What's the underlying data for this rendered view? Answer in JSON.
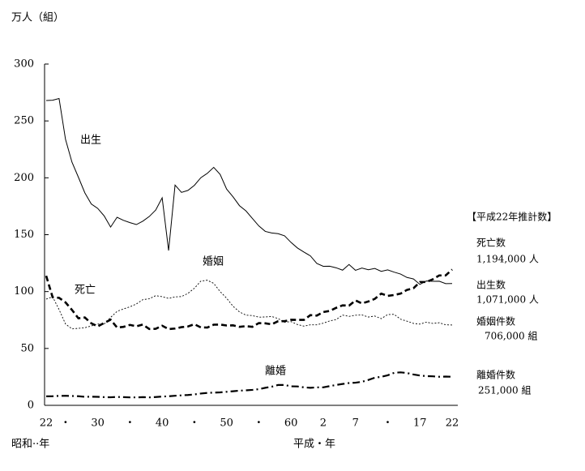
{
  "chart_data": {
    "type": "line",
    "y_label": "万人（組）",
    "x_label_left": "昭和··年",
    "x_label_right": "平成・年",
    "categories": [
      "22",
      null,
      null,
      "・",
      null,
      null,
      null,
      null,
      "30",
      null,
      null,
      null,
      null,
      "・",
      null,
      null,
      null,
      null,
      "40",
      null,
      null,
      null,
      null,
      "・",
      null,
      null,
      null,
      null,
      "50",
      null,
      null,
      null,
      null,
      "・",
      null,
      null,
      null,
      null,
      "60",
      null,
      null,
      null,
      null,
      "2",
      null,
      null,
      null,
      null,
      "7",
      null,
      null,
      null,
      null,
      "・",
      null,
      null,
      null,
      null,
      "17",
      null,
      null,
      null,
      null,
      "22"
    ],
    "ylim": [
      0,
      300
    ],
    "yticks": [
      0,
      50,
      100,
      150,
      200,
      250,
      300
    ],
    "series": [
      {
        "name": "出生",
        "color": "#000000",
        "style": "solid",
        "values": [
          267.9,
          268.2,
          269.7,
          233.8,
          213.8,
          200.5,
          186.8,
          177.0,
          173.1,
          166.5,
          156.7,
          165.3,
          162.6,
          160.6,
          158.9,
          161.9,
          166.0,
          171.7,
          182.4,
          136.1,
          193.6,
          187.2,
          188.9,
          193.4,
          200.1,
          203.9,
          209.2,
          203.0,
          190.1,
          183.3,
          175.5,
          170.9,
          164.3,
          157.7,
          152.9,
          151.5,
          150.9,
          149.0,
          143.2,
          138.3,
          134.7,
          131.4,
          124.7,
          122.2,
          122.3,
          120.9,
          118.8,
          123.8,
          118.7,
          120.7,
          119.2,
          120.3,
          117.8,
          119.1,
          117.1,
          115.4,
          112.4,
          111.1,
          106.3,
          109.3,
          109.0,
          109.1,
          107.0,
          107.1
        ]
      },
      {
        "name": "死亡",
        "color": "#000000",
        "style": "dashed",
        "values": [
          113.8,
          95.0,
          94.5,
          90.5,
          83.9,
          76.5,
          77.2,
          72.1,
          69.4,
          72.4,
          75.3,
          68.4,
          69.0,
          70.7,
          69.5,
          71.0,
          67.1,
          67.3,
          70.0,
          67.0,
          67.5,
          68.7,
          69.3,
          71.3,
          68.5,
          68.4,
          70.9,
          71.0,
          70.2,
          70.3,
          69.0,
          69.6,
          69.0,
          72.3,
          72.1,
          71.2,
          74.0,
          74.0,
          75.2,
          75.1,
          75.1,
          79.3,
          78.9,
          82.0,
          83.0,
          85.7,
          87.9,
          87.6,
          92.2,
          89.6,
          91.3,
          93.6,
          98.2,
          96.2,
          97.0,
          98.2,
          101.5,
          102.9,
          108.4,
          108.4,
          110.8,
          114.2,
          114.2,
          119.4
        ]
      },
      {
        "name": "婚姻",
        "color": "#000000",
        "style": "dotted",
        "values": [
          93.4,
          95.4,
          84.2,
          71.5,
          67.2,
          67.7,
          68.2,
          69.8,
          71.5,
          71.5,
          77.3,
          82.6,
          84.8,
          86.6,
          89.1,
          92.9,
          93.7,
          96.4,
          95.5,
          94.0,
          95.3,
          95.6,
          98.4,
          102.9,
          109.2,
          110.0,
          107.2,
          100.0,
          94.2,
          87.1,
          82.1,
          79.3,
          78.9,
          77.5,
          77.7,
          78.1,
          76.3,
          73.0,
          73.6,
          71.0,
          69.6,
          70.8,
          70.8,
          72.2,
          74.2,
          75.4,
          79.3,
          78.2,
          79.2,
          79.5,
          77.6,
          78.5,
          76.2,
          79.8,
          80.0,
          75.7,
          74.0,
          72.0,
          71.4,
          73.1,
          72.0,
          72.6,
          70.8,
          70.6
        ]
      },
      {
        "name": "離婚",
        "color": "#000000",
        "style": "dashdot",
        "values": [
          7.9,
          8.0,
          8.3,
          8.4,
          8.2,
          8.0,
          7.5,
          7.6,
          7.5,
          7.2,
          7.1,
          7.4,
          7.2,
          7.0,
          7.0,
          7.2,
          7.0,
          7.3,
          7.7,
          8.0,
          8.4,
          8.8,
          9.1,
          9.6,
          10.4,
          10.9,
          11.2,
          11.4,
          11.9,
          12.4,
          12.9,
          13.2,
          13.6,
          14.2,
          15.4,
          16.4,
          17.9,
          17.9,
          16.7,
          16.6,
          15.8,
          15.4,
          15.8,
          15.8,
          16.9,
          17.9,
          18.8,
          19.6,
          19.9,
          20.7,
          22.3,
          24.3,
          25.1,
          26.4,
          28.6,
          29.0,
          28.4,
          27.1,
          26.2,
          25.7,
          25.5,
          25.1,
          25.3,
          25.1
        ]
      }
    ],
    "annotations": [
      "【平成22年推計数】",
      "死亡数",
      "1,194,000 人",
      "出生数",
      "1,071,000 人",
      "婚姻件数",
      "706,000 組",
      "離婚件数",
      "251,000 組"
    ]
  }
}
